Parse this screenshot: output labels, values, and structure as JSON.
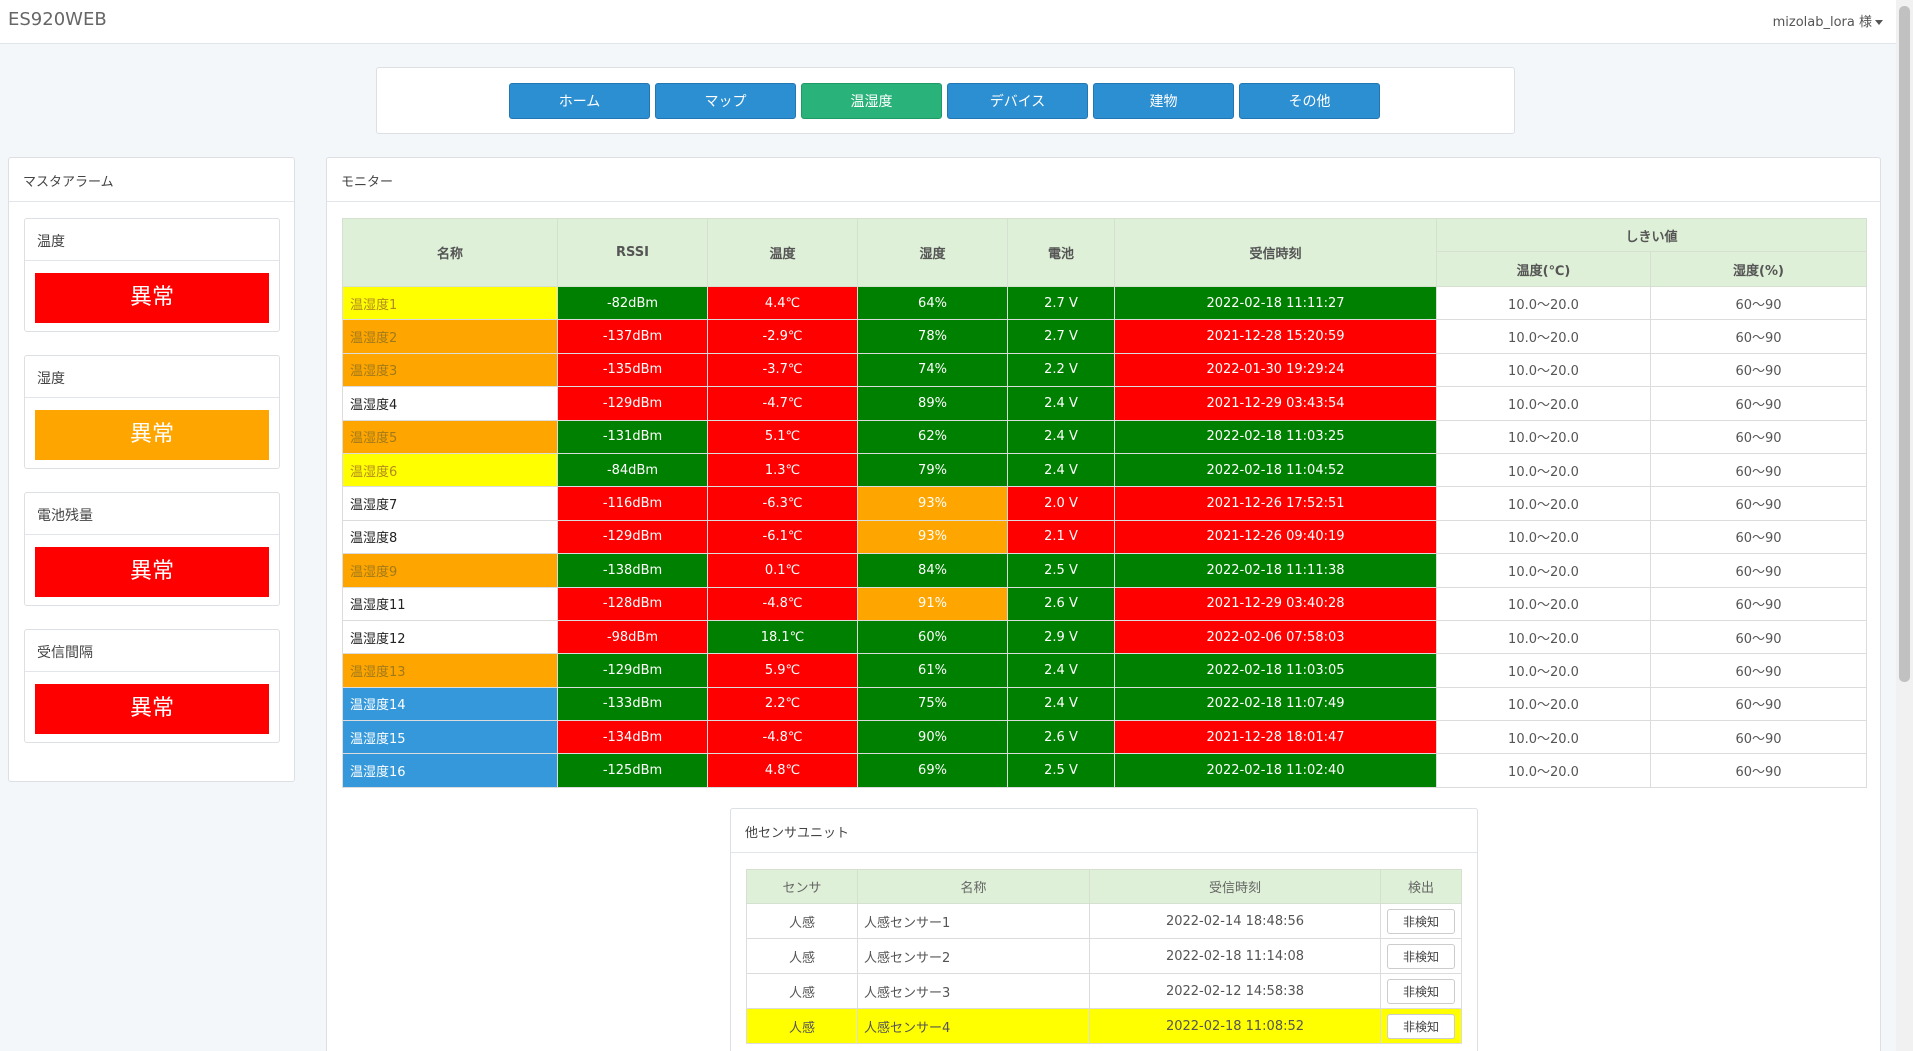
{
  "app": {
    "brand": "ES920WEB",
    "user_label": "mizolab_lora 様"
  },
  "nav": {
    "items": [
      {
        "label": "ホーム",
        "active": false
      },
      {
        "label": "マップ",
        "active": false
      },
      {
        "label": "温湿度",
        "active": true
      },
      {
        "label": "デバイス",
        "active": false
      },
      {
        "label": "建物",
        "active": false
      },
      {
        "label": "その他",
        "active": false
      }
    ]
  },
  "alarm": {
    "title": "マスタアラーム",
    "cards": [
      {
        "title": "温度",
        "status": "異常",
        "color": "#ff0000"
      },
      {
        "title": "湿度",
        "status": "異常",
        "color": "#ffa500"
      },
      {
        "title": "電池残量",
        "status": "異常",
        "color": "#ff0000"
      },
      {
        "title": "受信間隔",
        "status": "異常",
        "color": "#ff0000"
      }
    ]
  },
  "monitor": {
    "title": "モニター",
    "headers": {
      "name": "名称",
      "rssi": "RSSI",
      "temp": "温度",
      "hum": "湿度",
      "batt": "電池",
      "time": "受信時刻",
      "threshold": "しきい値",
      "thr_temp": "温度(℃)",
      "thr_hum": "湿度(%)"
    },
    "rows": [
      {
        "name": "温湿度1",
        "name_c": "y",
        "rssi": "-82dBm",
        "rssi_c": "g",
        "temp": "4.4℃",
        "temp_c": "r",
        "hum": "64%",
        "hum_c": "g",
        "batt": "2.7 V",
        "batt_c": "g",
        "time": "2022-02-18 11:11:27",
        "time_c": "g",
        "thr_temp": "10.0～20.0",
        "thr_hum": "60～90"
      },
      {
        "name": "温湿度2",
        "name_c": "o",
        "rssi": "-137dBm",
        "rssi_c": "r",
        "temp": "-2.9℃",
        "temp_c": "r",
        "hum": "78%",
        "hum_c": "g",
        "batt": "2.7 V",
        "batt_c": "g",
        "time": "2021-12-28 15:20:59",
        "time_c": "r",
        "thr_temp": "10.0～20.0",
        "thr_hum": "60～90"
      },
      {
        "name": "温湿度3",
        "name_c": "o",
        "rssi": "-135dBm",
        "rssi_c": "r",
        "temp": "-3.7℃",
        "temp_c": "r",
        "hum": "74%",
        "hum_c": "g",
        "batt": "2.2 V",
        "batt_c": "g",
        "time": "2022-01-30 19:29:24",
        "time_c": "r",
        "thr_temp": "10.0～20.0",
        "thr_hum": "60～90"
      },
      {
        "name": "温湿度4",
        "name_c": "w",
        "rssi": "-129dBm",
        "rssi_c": "r",
        "temp": "-4.7℃",
        "temp_c": "r",
        "hum": "89%",
        "hum_c": "g",
        "batt": "2.4 V",
        "batt_c": "g",
        "time": "2021-12-29 03:43:54",
        "time_c": "r",
        "thr_temp": "10.0～20.0",
        "thr_hum": "60～90"
      },
      {
        "name": "温湿度5",
        "name_c": "o",
        "rssi": "-131dBm",
        "rssi_c": "g",
        "temp": "5.1℃",
        "temp_c": "r",
        "hum": "62%",
        "hum_c": "g",
        "batt": "2.4 V",
        "batt_c": "g",
        "time": "2022-02-18 11:03:25",
        "time_c": "g",
        "thr_temp": "10.0～20.0",
        "thr_hum": "60～90"
      },
      {
        "name": "温湿度6",
        "name_c": "y",
        "rssi": "-84dBm",
        "rssi_c": "g",
        "temp": "1.3℃",
        "temp_c": "r",
        "hum": "79%",
        "hum_c": "g",
        "batt": "2.4 V",
        "batt_c": "g",
        "time": "2022-02-18 11:04:52",
        "time_c": "g",
        "thr_temp": "10.0～20.0",
        "thr_hum": "60～90"
      },
      {
        "name": "温湿度7",
        "name_c": "w",
        "rssi": "-116dBm",
        "rssi_c": "r",
        "temp": "-6.3℃",
        "temp_c": "r",
        "hum": "93%",
        "hum_c": "o",
        "batt": "2.0 V",
        "batt_c": "r",
        "time": "2021-12-26 17:52:51",
        "time_c": "r",
        "thr_temp": "10.0～20.0",
        "thr_hum": "60～90"
      },
      {
        "name": "温湿度8",
        "name_c": "w",
        "rssi": "-129dBm",
        "rssi_c": "r",
        "temp": "-6.1℃",
        "temp_c": "r",
        "hum": "93%",
        "hum_c": "o",
        "batt": "2.1 V",
        "batt_c": "r",
        "time": "2021-12-26 09:40:19",
        "time_c": "r",
        "thr_temp": "10.0～20.0",
        "thr_hum": "60～90"
      },
      {
        "name": "温湿度9",
        "name_c": "o",
        "rssi": "-138dBm",
        "rssi_c": "g",
        "temp": "0.1℃",
        "temp_c": "r",
        "hum": "84%",
        "hum_c": "g",
        "batt": "2.5 V",
        "batt_c": "g",
        "time": "2022-02-18 11:11:38",
        "time_c": "g",
        "thr_temp": "10.0～20.0",
        "thr_hum": "60～90"
      },
      {
        "name": "温湿度11",
        "name_c": "w",
        "rssi": "-128dBm",
        "rssi_c": "r",
        "temp": "-4.8℃",
        "temp_c": "r",
        "hum": "91%",
        "hum_c": "o",
        "batt": "2.6 V",
        "batt_c": "g",
        "time": "2021-12-29 03:40:28",
        "time_c": "r",
        "thr_temp": "10.0～20.0",
        "thr_hum": "60～90"
      },
      {
        "name": "温湿度12",
        "name_c": "w",
        "rssi": "-98dBm",
        "rssi_c": "r",
        "temp": "18.1℃",
        "temp_c": "g",
        "hum": "60%",
        "hum_c": "g",
        "batt": "2.9 V",
        "batt_c": "g",
        "time": "2022-02-06 07:58:03",
        "time_c": "r",
        "thr_temp": "10.0～20.0",
        "thr_hum": "60～90"
      },
      {
        "name": "温湿度13",
        "name_c": "o",
        "rssi": "-129dBm",
        "rssi_c": "g",
        "temp": "5.9℃",
        "temp_c": "r",
        "hum": "61%",
        "hum_c": "g",
        "batt": "2.4 V",
        "batt_c": "g",
        "time": "2022-02-18 11:03:05",
        "time_c": "g",
        "thr_temp": "10.0～20.0",
        "thr_hum": "60～90"
      },
      {
        "name": "温湿度14",
        "name_c": "b",
        "rssi": "-133dBm",
        "rssi_c": "g",
        "temp": "2.2℃",
        "temp_c": "r",
        "hum": "75%",
        "hum_c": "g",
        "batt": "2.4 V",
        "batt_c": "g",
        "time": "2022-02-18 11:07:49",
        "time_c": "g",
        "thr_temp": "10.0～20.0",
        "thr_hum": "60～90"
      },
      {
        "name": "温湿度15",
        "name_c": "b",
        "rssi": "-134dBm",
        "rssi_c": "r",
        "temp": "-4.8℃",
        "temp_c": "r",
        "hum": "90%",
        "hum_c": "g",
        "batt": "2.6 V",
        "batt_c": "g",
        "time": "2021-12-28 18:01:47",
        "time_c": "r",
        "thr_temp": "10.0～20.0",
        "thr_hum": "60～90"
      },
      {
        "name": "温湿度16",
        "name_c": "b",
        "rssi": "-125dBm",
        "rssi_c": "g",
        "temp": "4.8℃",
        "temp_c": "r",
        "hum": "69%",
        "hum_c": "g",
        "batt": "2.5 V",
        "batt_c": "g",
        "time": "2022-02-18 11:02:40",
        "time_c": "g",
        "thr_temp": "10.0～20.0",
        "thr_hum": "60～90"
      }
    ]
  },
  "sensors": {
    "title": "他センサユニット",
    "headers": {
      "sensor": "センサ",
      "name": "名称",
      "time": "受信時刻",
      "detect": "検出"
    },
    "rows": [
      {
        "sensor": "人感",
        "name": "人感センサー1",
        "time": "2022-02-14 18:48:56",
        "detect": "非検知",
        "highlight": false
      },
      {
        "sensor": "人感",
        "name": "人感センサー2",
        "time": "2022-02-18 11:14:08",
        "detect": "非検知",
        "highlight": false
      },
      {
        "sensor": "人感",
        "name": "人感センサー3",
        "time": "2022-02-12 14:58:38",
        "detect": "非検知",
        "highlight": false
      },
      {
        "sensor": "人感",
        "name": "人感センサー4",
        "time": "2022-02-18 11:08:52",
        "detect": "非検知",
        "highlight": true
      }
    ]
  }
}
